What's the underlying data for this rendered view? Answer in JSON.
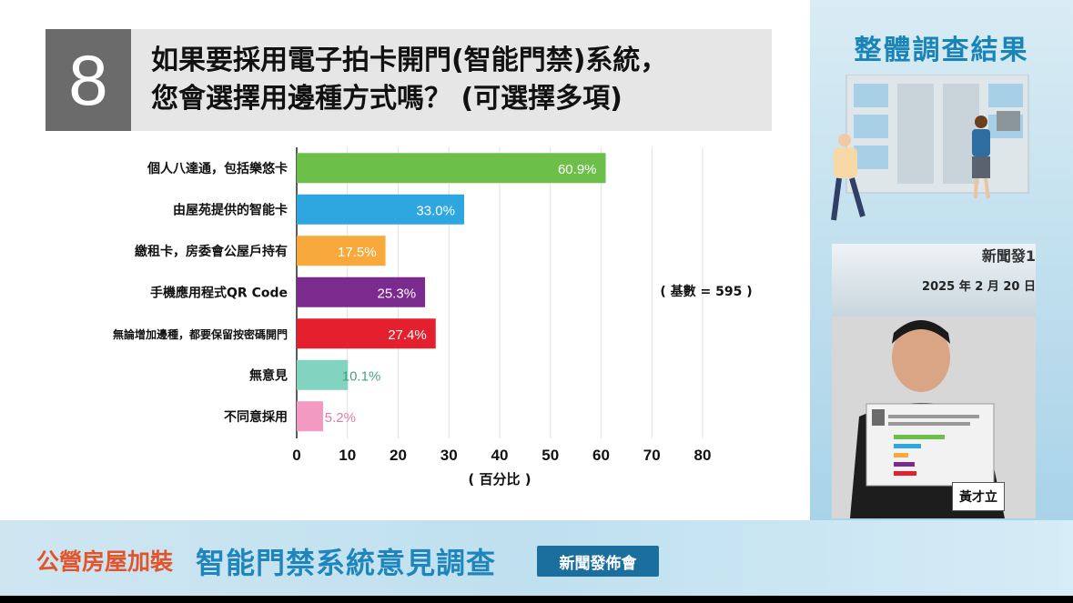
{
  "question": {
    "number": "8",
    "line1": "如果要採用電子拍卡開門(智能門禁)系統，",
    "line2": "您會選擇用邊種方式嗎？ (可選擇多項)"
  },
  "side": {
    "title": "整體調查結果",
    "video_banner_title": "新聞發1",
    "video_banner_date": "2025 年 2 月 20 日",
    "name_plate": "黃才立"
  },
  "footer": {
    "left": "公營房屋加裝",
    "main": "智能門禁系統意見調查",
    "badge": "新聞發佈會"
  },
  "chart_data": {
    "type": "bar",
    "orientation": "horizontal",
    "categories": [
      "個人八達通，包括樂悠卡",
      "由屋苑提供的智能卡",
      "繳租卡，房委會公屋戶持有",
      "手機應用程式QR Code",
      "無論增加邊種，都要保留按密碼開門",
      "無意見",
      "不同意採用"
    ],
    "values": [
      60.9,
      33.0,
      17.5,
      25.3,
      27.4,
      10.1,
      5.2
    ],
    "value_labels": [
      "60.9%",
      "33.0%",
      "17.5%",
      "25.3%",
      "27.4%",
      "10.1%",
      "5.2%"
    ],
    "colors": [
      "#6cc04a",
      "#2ea7e0",
      "#f7a93b",
      "#7b2a8e",
      "#e5202e",
      "#82d3bf",
      "#f39ac2"
    ],
    "xlabel": "( 百分比 )",
    "xlim": [
      0,
      80
    ],
    "xticks": [
      0,
      10,
      20,
      30,
      40,
      50,
      60,
      70,
      80
    ],
    "annotation": "( 基數 = 595 )",
    "grid": "vertical"
  }
}
